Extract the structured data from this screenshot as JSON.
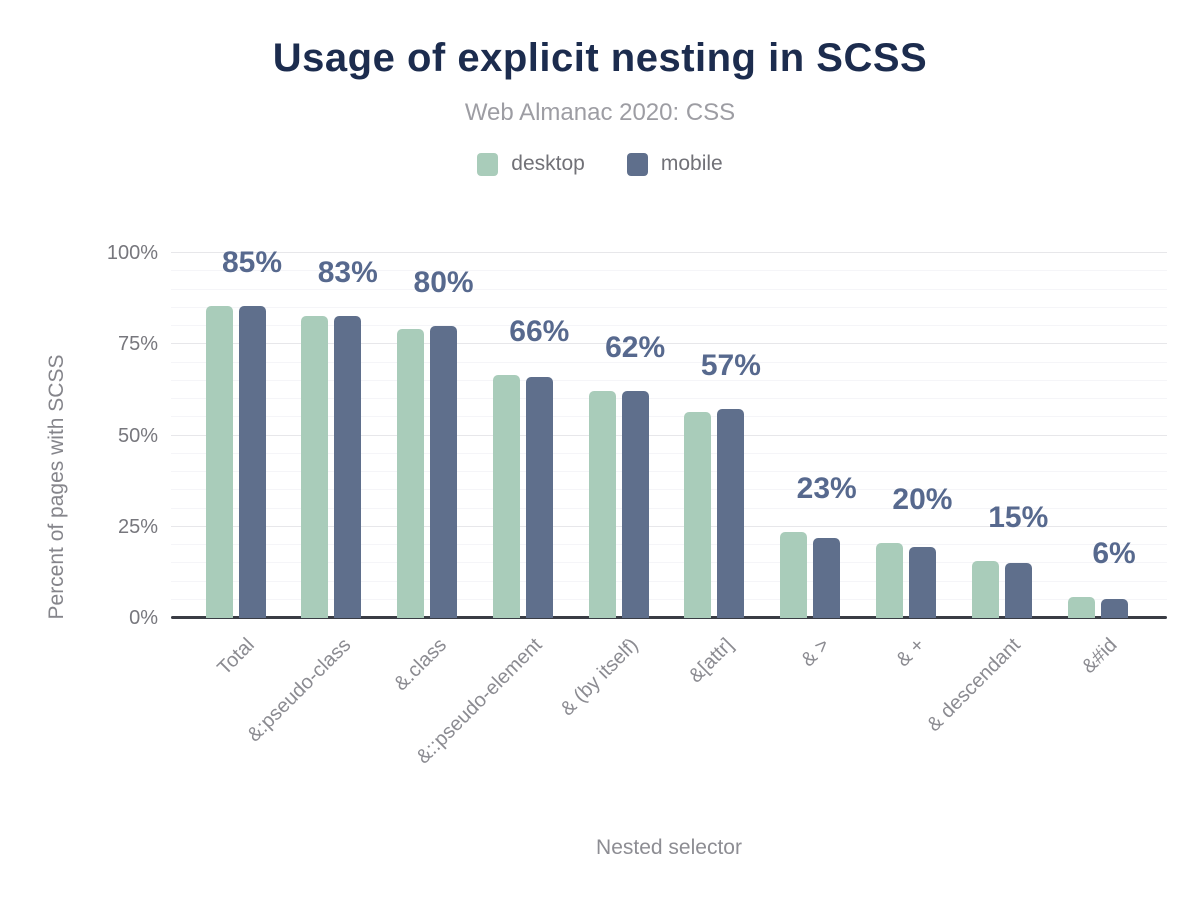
{
  "header": {
    "title": "Usage of explicit nesting in SCSS",
    "subtitle": "Web Almanac 2020: CSS"
  },
  "chart_data": {
    "type": "bar",
    "title": "Usage of explicit nesting in SCSS",
    "subtitle": "Web Almanac 2020: CSS",
    "xlabel": "Nested selector",
    "ylabel": "Percent of pages with SCSS",
    "categories": [
      "Total",
      "&:pseudo-class",
      "&.class",
      "&::pseudo-element",
      "& (by itself)",
      "&[attr]",
      "& >",
      "& +",
      "& descendant",
      "&#id"
    ],
    "series": [
      {
        "name": "desktop",
        "color": "#a9ccba",
        "values": [
          85.4,
          82.7,
          79.3,
          66.5,
          62.2,
          56.5,
          23.7,
          20.6,
          15.6,
          5.8
        ]
      },
      {
        "name": "mobile",
        "color": "#5f6f8c",
        "values": [
          85.4,
          82.8,
          80.1,
          66.0,
          62.3,
          57.2,
          22.0,
          19.4,
          15.0,
          5.2
        ]
      }
    ],
    "value_labels": [
      "85%",
      "83%",
      "80%",
      "66%",
      "62%",
      "57%",
      "23%",
      "20%",
      "15%",
      "6%"
    ],
    "y_ticks": [
      "0%",
      "25%",
      "50%",
      "75%",
      "100%"
    ],
    "ylim": [
      0,
      100
    ],
    "grid": {
      "major_step": 25,
      "minor_step": 5,
      "on": true
    },
    "legend_position": "top",
    "value_label_color": "#57698e",
    "title_color": "#1c2c4e",
    "axis_line_color": "#393c44"
  }
}
